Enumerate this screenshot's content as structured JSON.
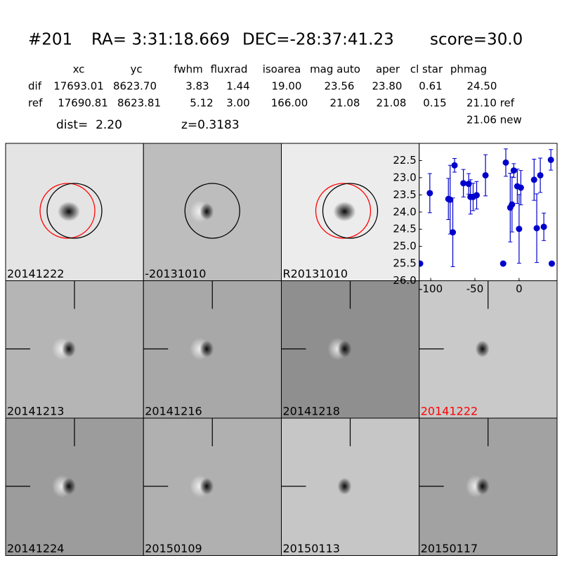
{
  "header": {
    "id": "#201",
    "ra": "RA= 3:31:18.669",
    "dec": "DEC=-28:37:41.23",
    "score": "score=30.0"
  },
  "table": {
    "columns": [
      "xc",
      "yc",
      "fwhm",
      "fluxrad",
      "isoarea",
      "mag auto",
      "aper",
      "cl star",
      "phmag"
    ],
    "rows": [
      [
        "dif",
        "17693.01",
        "8623.70",
        "3.83",
        "1.44",
        "19.00",
        "23.56",
        "23.80",
        "0.61",
        "24.50"
      ],
      [
        "ref",
        "17690.81",
        "8623.81",
        "5.12",
        "3.00",
        "166.00",
        "21.08",
        "21.08",
        "0.15",
        "21.10 ref"
      ]
    ],
    "extra": "21.06 new"
  },
  "info": {
    "dist": "dist=  2.20",
    "z": "z=0.3183"
  },
  "stamps": [
    {
      "label": "20141222"
    },
    {
      "label": "-20131010"
    },
    {
      "label": "R20131010"
    },
    {
      "label": "20141213"
    },
    {
      "label": "20141216"
    },
    {
      "label": "20141218"
    },
    {
      "label": "20141222",
      "label_color": "#ff0000"
    },
    {
      "label": "20141224"
    },
    {
      "label": "20150109"
    },
    {
      "label": "20150113"
    },
    {
      "label": "20150117"
    }
  ],
  "chart_data": {
    "type": "scatter",
    "color": "#0000cc",
    "x": [
      -112,
      -101,
      -80,
      -78,
      -75,
      -73,
      -63,
      -57,
      -55,
      -52,
      -48,
      -38,
      -18,
      -15,
      -10,
      -8,
      -6,
      -2,
      0,
      2,
      17,
      20,
      24,
      28,
      36,
      37
    ],
    "values": [
      25.5,
      23.45,
      23.62,
      23.64,
      24.59,
      22.64,
      23.16,
      23.18,
      23.56,
      23.56,
      23.51,
      22.93,
      25.5,
      22.56,
      23.87,
      23.78,
      22.79,
      23.25,
      24.49,
      23.29,
      23.06,
      24.47,
      22.93,
      24.43,
      22.48,
      25.5
    ],
    "errors": [
      0,
      0.57,
      0.6,
      1.0,
      1.0,
      0.2,
      0.4,
      0.3,
      0.5,
      0.4,
      0.4,
      0.6,
      0,
      0.4,
      1.0,
      0.8,
      0.2,
      0.5,
      1.0,
      0.5,
      0.6,
      1.0,
      0.5,
      0.4,
      0.3,
      0
    ],
    "xlim": [
      -113,
      43
    ],
    "xticks": [
      -100,
      -50,
      0
    ],
    "ylim": [
      26.0,
      22.0
    ],
    "yticks": [
      22.5,
      {
        "value": 23.0,
        "label": "23.0"
      },
      23.5,
      {
        "value": 24.0,
        "label": "24.0"
      },
      24.5,
      {
        "value": 25.0,
        "label": "25.0"
      },
      25.5,
      {
        "value": 26.0,
        "label": "26.0"
      }
    ]
  }
}
